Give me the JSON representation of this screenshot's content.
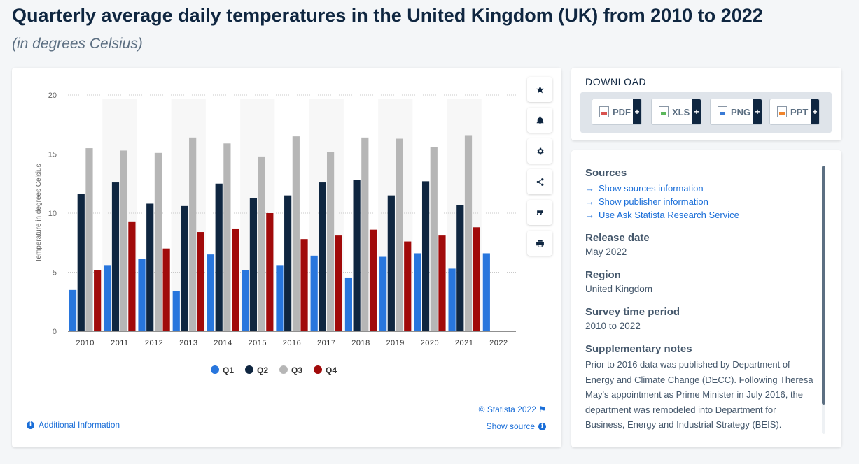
{
  "page": {
    "title": "Quarterly average daily temperatures in the United Kingdom (UK) from 2010 to 2022",
    "subtitle": "(in degrees Celsius)"
  },
  "chart_data": {
    "type": "bar",
    "ylabel": "Temperature in degrees Celsius",
    "xlabel": "",
    "ylim": [
      0,
      20
    ],
    "yticks": [
      "0",
      "5",
      "10",
      "15",
      "20"
    ],
    "grid": true,
    "legend_position": "bottom",
    "categories": [
      "2010",
      "2011",
      "2012",
      "2013",
      "2014",
      "2015",
      "2016",
      "2017",
      "2018",
      "2019",
      "2020",
      "2021",
      "2022"
    ],
    "series": [
      {
        "name": "Q1",
        "color": "#2876dd",
        "values": [
          3.5,
          5.6,
          6.1,
          3.4,
          6.5,
          5.2,
          5.6,
          6.4,
          4.5,
          6.3,
          6.6,
          5.3,
          6.6
        ]
      },
      {
        "name": "Q2",
        "color": "#0f2640",
        "values": [
          11.6,
          12.6,
          10.8,
          10.6,
          12.5,
          11.3,
          11.5,
          12.6,
          12.8,
          11.5,
          12.7,
          10.7,
          null
        ]
      },
      {
        "name": "Q3",
        "color": "#b6b6b6",
        "values": [
          15.5,
          15.3,
          15.1,
          16.4,
          15.9,
          14.8,
          16.5,
          15.2,
          16.4,
          16.3,
          15.6,
          16.6,
          null
        ]
      },
      {
        "name": "Q4",
        "color": "#a10a0a",
        "values": [
          5.2,
          9.3,
          7.0,
          8.4,
          8.7,
          10.0,
          7.8,
          8.1,
          8.6,
          7.6,
          8.1,
          8.8,
          null
        ]
      }
    ]
  },
  "chart_footer": {
    "copyright": "© Statista 2022",
    "show_source": "Show source",
    "additional_info": "Additional Information"
  },
  "side_tools": [
    {
      "name": "star-icon"
    },
    {
      "name": "bell-icon"
    },
    {
      "name": "gear-icon"
    },
    {
      "name": "share-icon"
    },
    {
      "name": "quote-icon"
    },
    {
      "name": "print-icon"
    }
  ],
  "download": {
    "heading": "DOWNLOAD",
    "buttons": [
      {
        "label": "PDF",
        "color": "#d9534f"
      },
      {
        "label": "XLS",
        "color": "#5cb85c"
      },
      {
        "label": "PNG",
        "color": "#3a7bd5"
      },
      {
        "label": "PPT",
        "color": "#f0852d"
      }
    ],
    "plus": "+"
  },
  "info": {
    "sources_title": "Sources",
    "links": [
      "Show sources information",
      "Show publisher information",
      "Use Ask Statista Research Service"
    ],
    "release_title": "Release date",
    "release_value": "May 2022",
    "region_title": "Region",
    "region_value": "United Kingdom",
    "period_title": "Survey time period",
    "period_value": "2010 to 2022",
    "notes_title": "Supplementary notes",
    "notes_text": "Prior to 2016 data was published by Department of Energy and Climate Change (DECC). Following Theresa May's appointment as Prime Minister in July 2016, the department was remodeled into Department for Business, Energy and Industrial Strategy (BEIS)."
  }
}
